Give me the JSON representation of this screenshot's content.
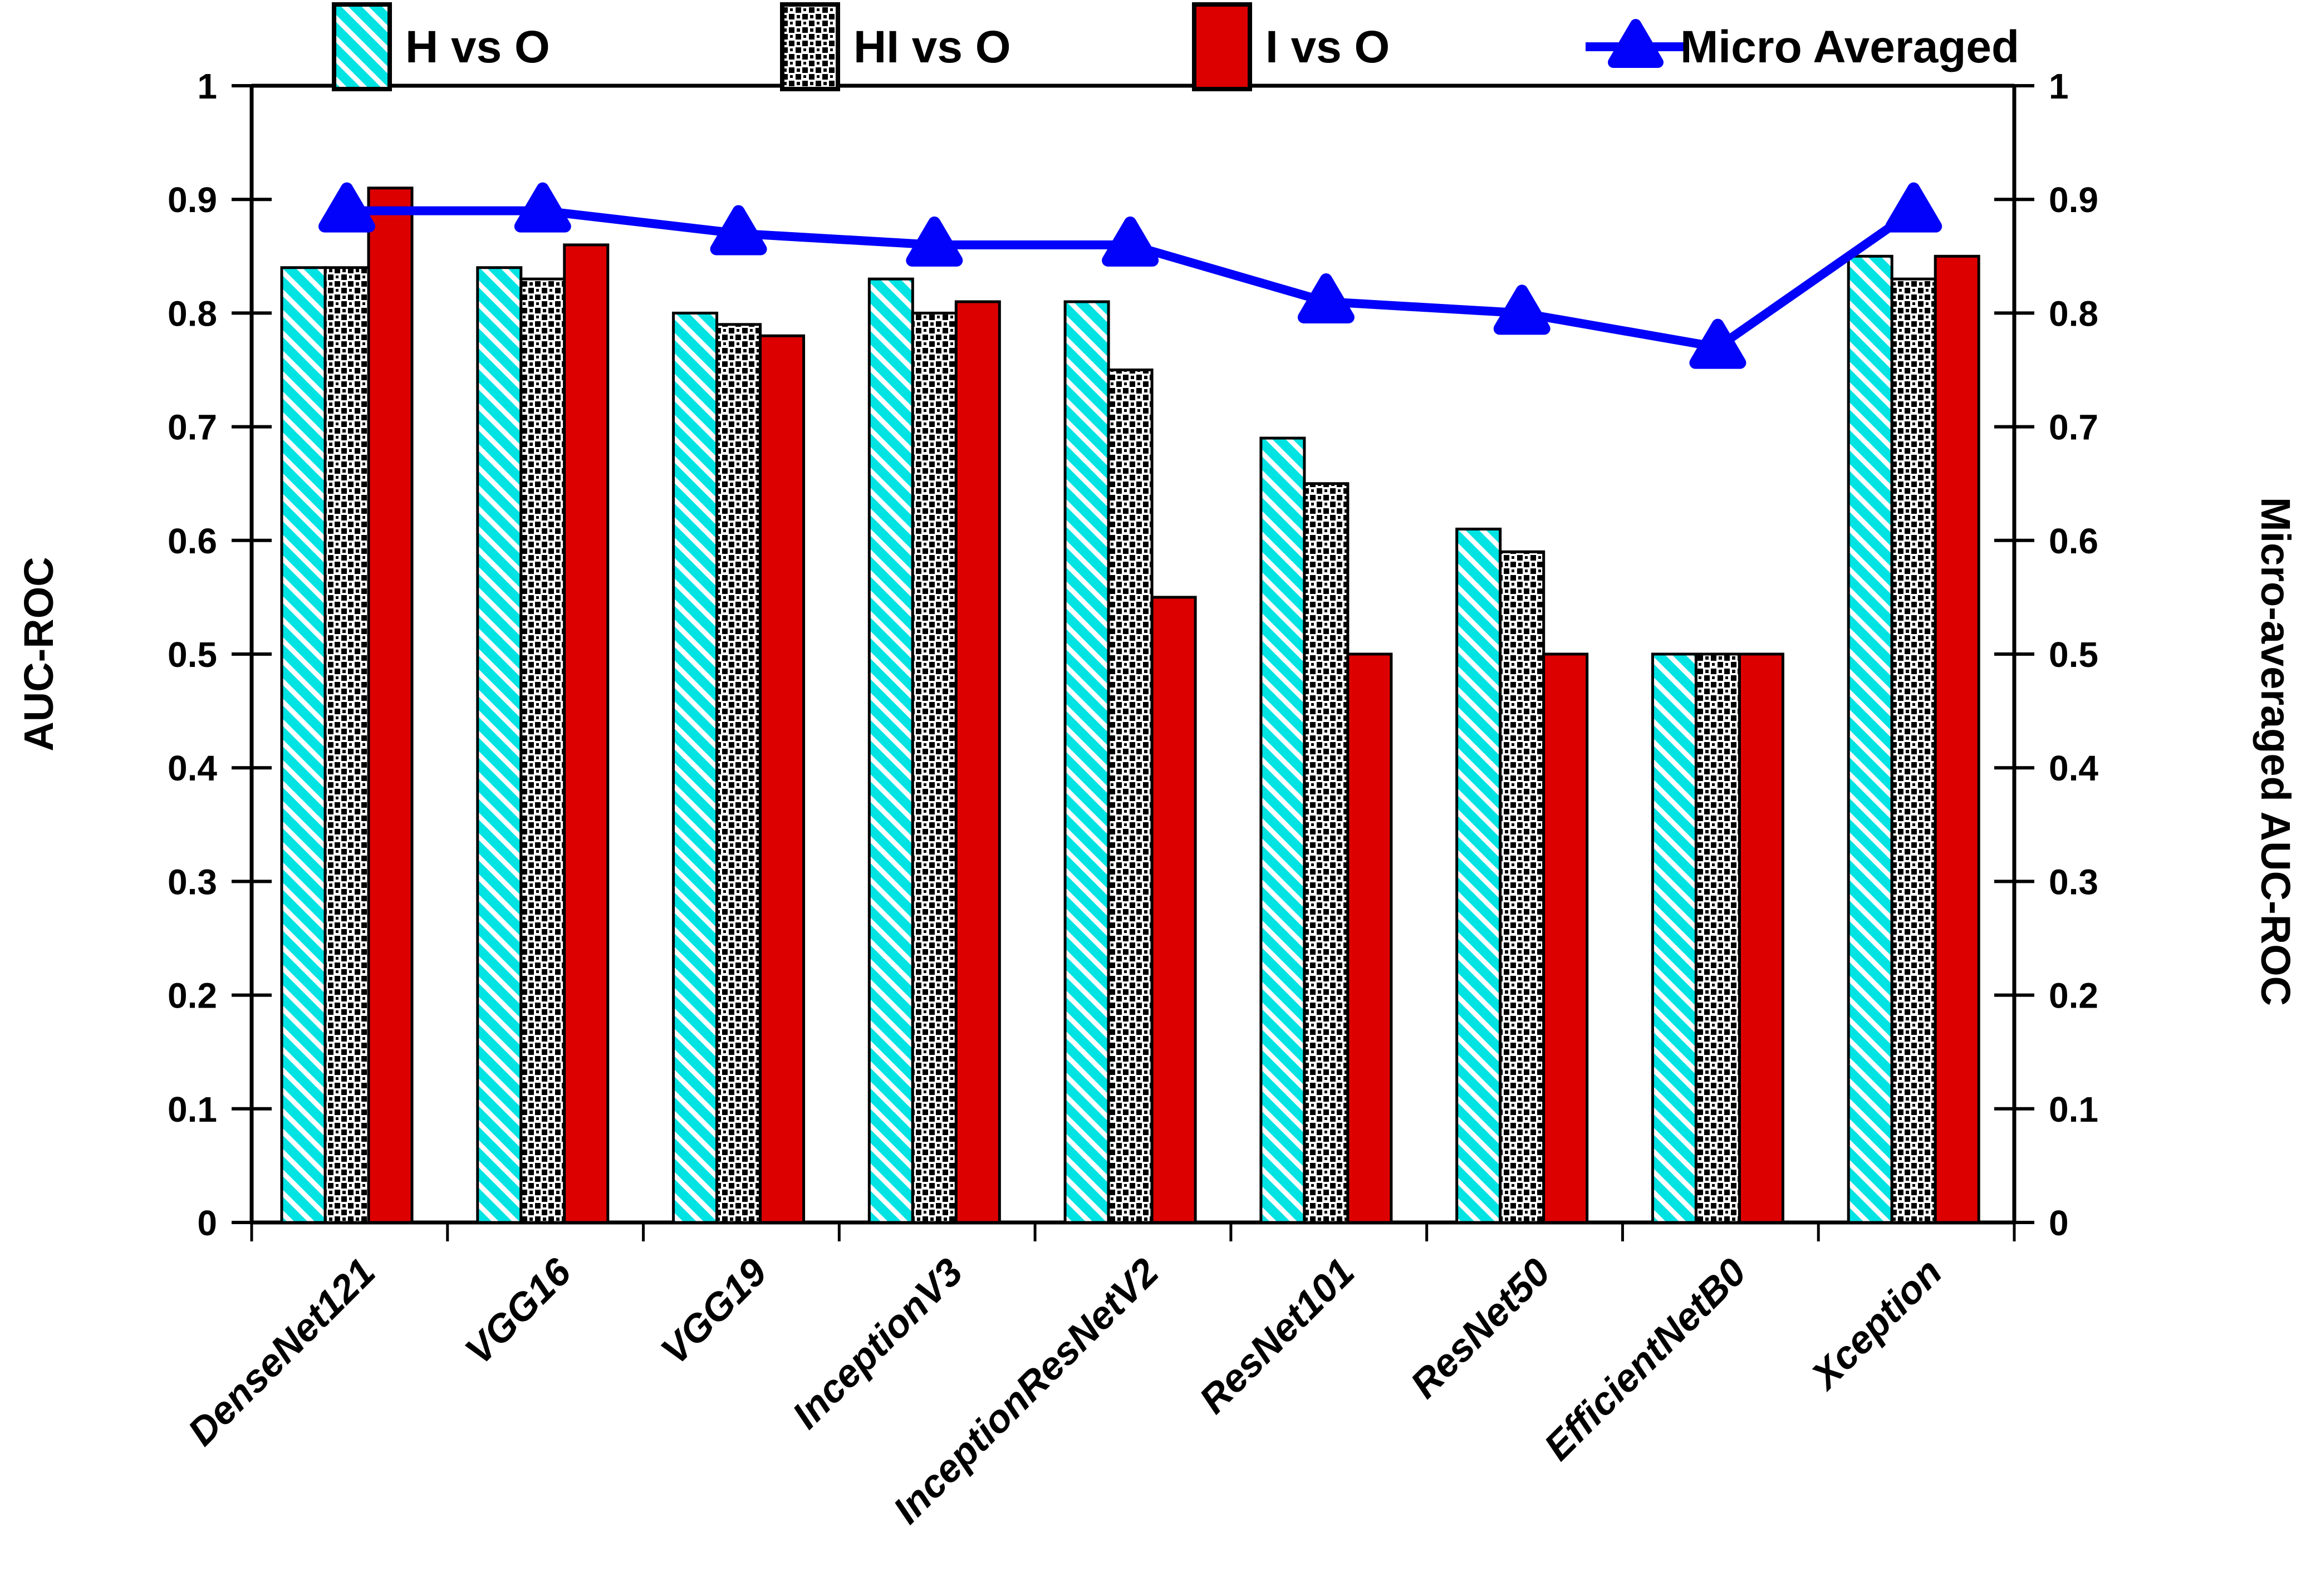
{
  "legend": [
    {
      "label": "H vs O",
      "swatch": "cyan-hatch"
    },
    {
      "label": "HI vs O",
      "swatch": "black-dots"
    },
    {
      "label": "I vs O",
      "swatch": "red-solid"
    },
    {
      "label": "Micro Averaged",
      "swatch": "blue-line-triangle"
    }
  ],
  "chart_data": {
    "type": "bar",
    "title": "",
    "categories": [
      "DenseNet121",
      "VGG16",
      "VGG19",
      "InceptionV3",
      "InceptionResNetV2",
      "ResNet101",
      "ResNet50",
      "EfficientNetB0",
      "Xception"
    ],
    "series": [
      {
        "name": "H vs O",
        "type": "bar",
        "style": "cyan-hatch",
        "axis": "left",
        "values": [
          0.84,
          0.84,
          0.8,
          0.83,
          0.81,
          0.69,
          0.61,
          0.5,
          0.85
        ]
      },
      {
        "name": "HI vs O",
        "type": "bar",
        "style": "black-dots",
        "axis": "left",
        "values": [
          0.84,
          0.83,
          0.79,
          0.8,
          0.75,
          0.65,
          0.59,
          0.5,
          0.83
        ]
      },
      {
        "name": "I vs O",
        "type": "bar",
        "style": "red-solid",
        "axis": "left",
        "values": [
          0.91,
          0.86,
          0.78,
          0.81,
          0.55,
          0.5,
          0.5,
          0.5,
          0.85
        ]
      },
      {
        "name": "Micro Averaged",
        "type": "line",
        "style": "blue-triangle-marker",
        "axis": "right",
        "values": [
          0.89,
          0.89,
          0.87,
          0.86,
          0.86,
          0.81,
          0.8,
          0.77,
          0.89
        ]
      }
    ],
    "xlabel": "",
    "ylabel": "AUC-ROC",
    "y2label": "Micro-averaged AUC-ROC",
    "ylim": [
      0,
      1
    ],
    "ytick_step": 0.1,
    "ytick_labels": [
      "0",
      "0.1",
      "0.2",
      "0.3",
      "0.4",
      "0.5",
      "0.6",
      "0.7",
      "0.8",
      "0.9",
      "1"
    ],
    "grid": false,
    "legend_position": "top"
  },
  "colors": {
    "cyan": "#00e3e3",
    "red": "#dd0000",
    "blue": "#0202fa",
    "black": "#000000",
    "white": "#ffffff"
  }
}
